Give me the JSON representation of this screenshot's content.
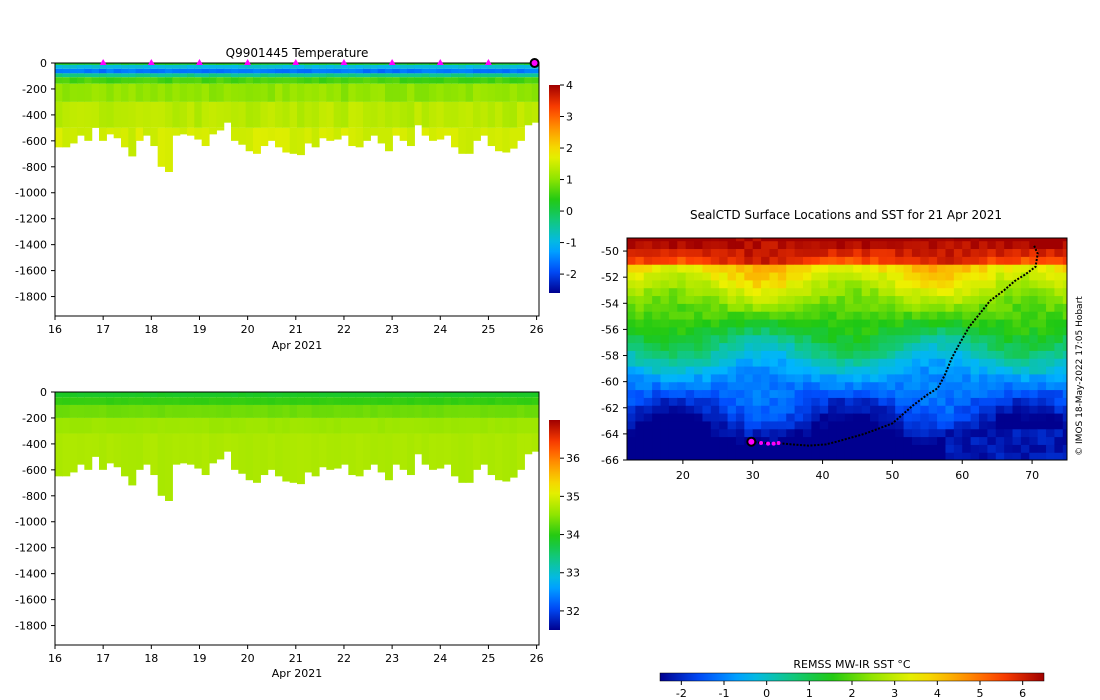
{
  "chart_data": [
    {
      "type": "heatmap",
      "title": "Q9901445  Temperature",
      "xlabel": "Apr 2021",
      "x_ticks": [
        "16",
        "17",
        "18",
        "19",
        "20",
        "21",
        "22",
        "23",
        "24",
        "25",
        "26"
      ],
      "y_ticks": [
        "0",
        "-200",
        "-400",
        "-600",
        "-800",
        "-1000",
        "-1200",
        "-1400",
        "-1600",
        "-1800"
      ],
      "ylim": [
        -1950,
        0
      ],
      "xlim": [
        16,
        26.05
      ],
      "colorbar_ticks": [
        "4",
        "3",
        "2",
        "1",
        "0",
        "-1",
        "-2"
      ],
      "colorbar_range": [
        -2.6,
        4
      ],
      "colormap": [
        "#00008f",
        "#0050ff",
        "#00b4ff",
        "#10c88c",
        "#1ec814",
        "#96e600",
        "#f0f000",
        "#ffa000",
        "#ff4000",
        "#a00000"
      ],
      "profile_days": [
        17,
        18,
        19,
        20,
        21,
        22,
        23,
        24,
        25,
        26
      ],
      "profile_marker_color": "#ff00ff",
      "profile_depths": [
        650,
        650,
        620,
        560,
        600,
        500,
        600,
        550,
        580,
        650,
        720,
        600,
        560,
        640,
        800,
        840,
        560,
        550,
        560,
        590,
        640,
        550,
        520,
        460,
        600,
        630,
        680,
        700,
        640,
        600,
        650,
        690,
        700,
        710,
        620,
        650,
        580,
        600,
        590,
        560,
        640,
        650,
        600,
        560,
        620,
        680,
        560,
        600,
        640,
        480,
        560,
        600,
        590,
        560,
        650,
        700,
        700,
        600,
        560,
        640,
        680,
        690,
        660,
        600,
        480,
        460
      ],
      "data_description": "Surface layer near 0 °C to -1.5 °C in top 100 m; water column below ~200 m is 1 °C to 2 °C to profile bottom"
    },
    {
      "type": "heatmap",
      "xlabel": "Apr 2021",
      "x_ticks": [
        "16",
        "17",
        "18",
        "19",
        "20",
        "21",
        "22",
        "23",
        "24",
        "25",
        "26"
      ],
      "y_ticks": [
        "0",
        "-200",
        "-400",
        "-600",
        "-800",
        "-1000",
        "-1200",
        "-1400",
        "-1600",
        "-1800"
      ],
      "ylim": [
        -1950,
        0
      ],
      "xlim": [
        16,
        26.05
      ],
      "colorbar_ticks": [
        "36",
        "35",
        "34",
        "33",
        "32"
      ],
      "colorbar_range": [
        31.5,
        37
      ],
      "data_description": "Salinity ~33.8-34.3 near surface, ~34.6-34.7 below 200 m"
    },
    {
      "type": "heatmap",
      "title": "SealCTD Surface Locations and SST for 21 Apr 2021",
      "x_ticks": [
        "20",
        "30",
        "40",
        "50",
        "60",
        "70"
      ],
      "y_ticks": [
        "-50",
        "-52",
        "-54",
        "-56",
        "-58",
        "-60",
        "-62",
        "-64",
        "-66"
      ],
      "xlim": [
        12,
        75
      ],
      "ylim": [
        -66,
        -49
      ],
      "colorbar_title": "REMSS MW-IR SST °C",
      "colorbar_ticks": [
        "-2",
        "-1",
        "0",
        "1",
        "2",
        "3",
        "4",
        "5",
        "6"
      ],
      "colorbar_range": [
        -2.5,
        6.5
      ],
      "credit": "© IMOS 18-May-2022 17:05 Hobart",
      "track": [
        [
          70.3,
          -49.6
        ],
        [
          70.8,
          -50.2
        ],
        [
          70.5,
          -51.2
        ],
        [
          69.0,
          -51.8
        ],
        [
          67.5,
          -52.3
        ],
        [
          66.0,
          -53.0
        ],
        [
          64.0,
          -53.8
        ],
        [
          62.5,
          -54.8
        ],
        [
          61.0,
          -55.8
        ],
        [
          59.5,
          -57.2
        ],
        [
          58.5,
          -58.2
        ],
        [
          57.5,
          -59.5
        ],
        [
          56.5,
          -60.5
        ],
        [
          55.0,
          -61.0
        ],
        [
          53.0,
          -61.8
        ],
        [
          51.5,
          -62.5
        ],
        [
          50.0,
          -63.2
        ],
        [
          48.0,
          -63.6
        ],
        [
          46.0,
          -64.0
        ],
        [
          44.0,
          -64.3
        ],
        [
          42.0,
          -64.6
        ],
        [
          40.5,
          -64.8
        ],
        [
          38.0,
          -64.9
        ],
        [
          35.5,
          -64.8
        ],
        [
          33.5,
          -64.7
        ],
        [
          31.5,
          -64.7
        ],
        [
          29.8,
          -64.6
        ]
      ],
      "recent_positions": [
        [
          33.7,
          -64.7
        ],
        [
          33.0,
          -64.75
        ],
        [
          32.2,
          -64.75
        ],
        [
          31.2,
          -64.7
        ]
      ],
      "latest_position": [
        29.8,
        -64.6
      ]
    }
  ]
}
